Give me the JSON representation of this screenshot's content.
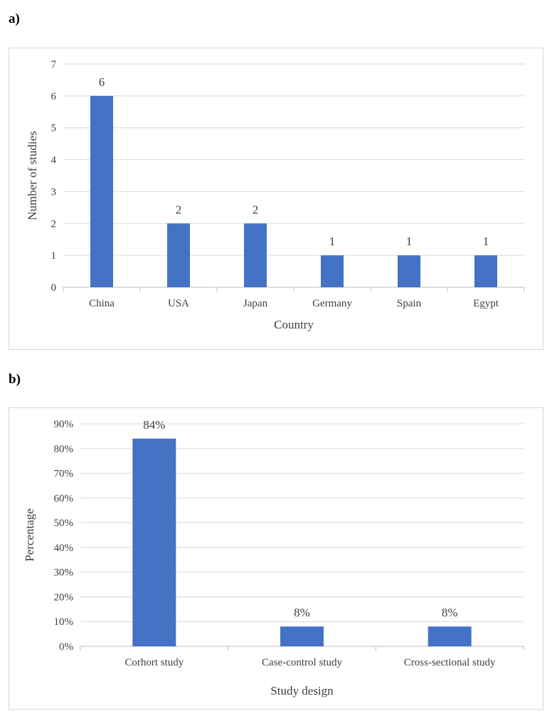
{
  "panels": {
    "a": {
      "label": "a)"
    },
    "b": {
      "label": "b)"
    }
  },
  "colors": {
    "bar": "#4472C4",
    "grid": "#d9d9d9",
    "axis": "#bfbfbf",
    "text": "#404040"
  },
  "chart_data": [
    {
      "type": "bar",
      "title": "",
      "xlabel": "Country",
      "ylabel": "Number of studies",
      "categories": [
        "China",
        "USA",
        "Japan",
        "Germany",
        "Spain",
        "Egypt"
      ],
      "values": [
        6,
        2,
        2,
        1,
        1,
        1
      ],
      "data_labels": [
        "6",
        "2",
        "2",
        "1",
        "1",
        "1"
      ],
      "ylim": [
        0,
        7
      ],
      "yticks": [
        "0",
        "1",
        "2",
        "3",
        "4",
        "5",
        "6",
        "7"
      ],
      "grid": true,
      "legend": "none"
    },
    {
      "type": "bar",
      "title": "",
      "xlabel": "Study design",
      "ylabel": "Percentage",
      "categories": [
        "Corhort study",
        "Case-control study",
        "Cross-sectional study"
      ],
      "values": [
        84,
        8,
        8
      ],
      "data_labels": [
        "84%",
        "8%",
        "8%"
      ],
      "ylim": [
        0,
        90
      ],
      "yticks": [
        "0%",
        "10%",
        "20%",
        "30%",
        "40%",
        "50%",
        "60%",
        "70%",
        "80%",
        "90%"
      ],
      "grid": true,
      "legend": "none"
    }
  ]
}
